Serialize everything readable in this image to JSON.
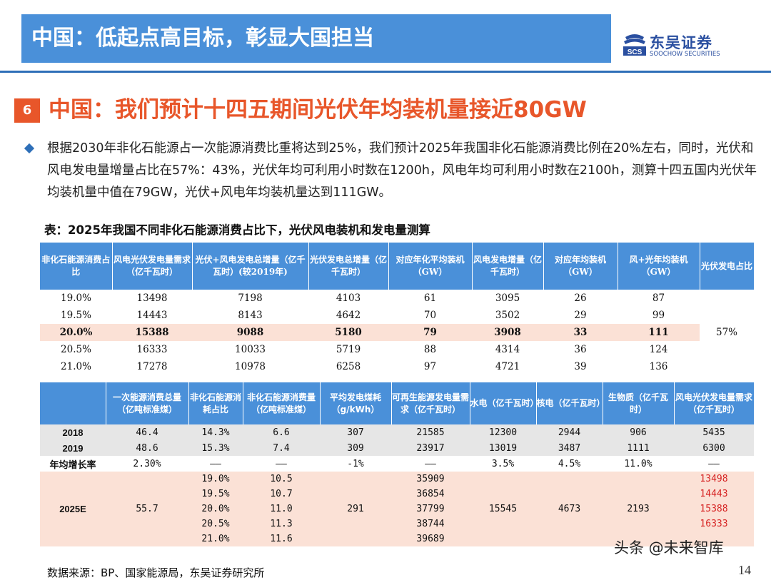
{
  "header": {
    "title": "中国：低起点高目标，彰显大国担当",
    "logo_cn": "东吴证券",
    "logo_en": "SOOCHOW SECURITIES",
    "logo_mark_text": "SCS"
  },
  "section": {
    "number": "6",
    "title": "中国：我们预计十四五期间光伏年均装机量接近80GW"
  },
  "paragraph": "根据2030年非化石能源占一次能源消费比重将达到25%，我们预计2025年我国非化石能源消费比例在20%左右，同时，光伏和风电发电量增量占比在57%：43%，光伏年均可利用小时数在1200h，风电年均可利用小时数在2100h，测算十四五国内光伏年均装机量中值在79GW，光伏+风电年均装机量达到111GW。",
  "table_caption": "表：2025年我国不同非化石能源消费占比下，光伏风电装机和发电量测算",
  "table1": {
    "headers": [
      "非化石能源消费占比",
      "风电光伏发电量需求（亿千瓦时）",
      "光伏+风电发电总增量（亿千瓦时）(较2019年)",
      "光伏发电总增量（亿千瓦时）",
      "对应年化平均装机（GW）",
      "风电发电增量（亿千瓦时）",
      "对应年均装机（GW）",
      "风+光年均装机（GW）",
      "光伏发电占比"
    ],
    "rows": [
      [
        "19.0%",
        "13498",
        "7198",
        "4103",
        "61",
        "3095",
        "26",
        "87"
      ],
      [
        "19.5%",
        "14443",
        "8143",
        "4642",
        "70",
        "3502",
        "29",
        "99"
      ],
      [
        "20.0%",
        "15388",
        "9088",
        "5180",
        "79",
        "3908",
        "33",
        "111"
      ],
      [
        "20.5%",
        "16333",
        "10033",
        "5719",
        "88",
        "4314",
        "36",
        "124"
      ],
      [
        "21.0%",
        "17278",
        "10978",
        "6258",
        "97",
        "4721",
        "39",
        "136"
      ]
    ],
    "solar_share": "57%"
  },
  "table2": {
    "headers": [
      "",
      "一次能源消费总量（亿吨标准煤）",
      "非化石能源消耗占比",
      "非化石能源消费量（亿吨标准煤）",
      "平均发电煤耗（g/kWh）",
      "可再生能源发电量需求（亿千瓦时）",
      "水电（亿千瓦时）",
      "核电（亿千瓦时）",
      "生物质（亿千瓦时）",
      "风电光伏发电量需求（亿千瓦时）"
    ],
    "row_2018": [
      "2018",
      "46.4",
      "14.3%",
      "6.6",
      "307",
      "21585",
      "12300",
      "2944",
      "906",
      "5435"
    ],
    "row_2019": [
      "2019",
      "48.6",
      "15.3%",
      "7.4",
      "309",
      "23917",
      "13019",
      "3487",
      "1111",
      "6300"
    ],
    "row_growth": [
      "年均增长率",
      "2.30%",
      "——",
      "——",
      "-1%",
      "——",
      "3.5%",
      "4.5%",
      "11.0%",
      "——"
    ],
    "row_2025": {
      "year": "2025E",
      "total_energy": "55.7",
      "coal_consumption": "291",
      "hydro": "15545",
      "nuclear": "4673",
      "biomass": "2193",
      "sub": [
        [
          "19.0%",
          "10.5",
          "35909",
          "13498"
        ],
        [
          "19.5%",
          "10.7",
          "36854",
          "14443"
        ],
        [
          "20.0%",
          "11.0",
          "37799",
          "15388"
        ],
        [
          "20.5%",
          "11.3",
          "38744",
          "16333"
        ],
        [
          "21.0%",
          "11.6",
          "39689",
          ""
        ]
      ]
    }
  },
  "source": "数据来源：BP、国家能源局，东吴证券研究所",
  "watermark": "头条 @未来智库",
  "page_number": "14",
  "colors": {
    "header_blue": "#4a90d9",
    "accent_orange": "#e8562a",
    "highlight_pink": "#fbe1d6",
    "value_red": "#d62222"
  }
}
